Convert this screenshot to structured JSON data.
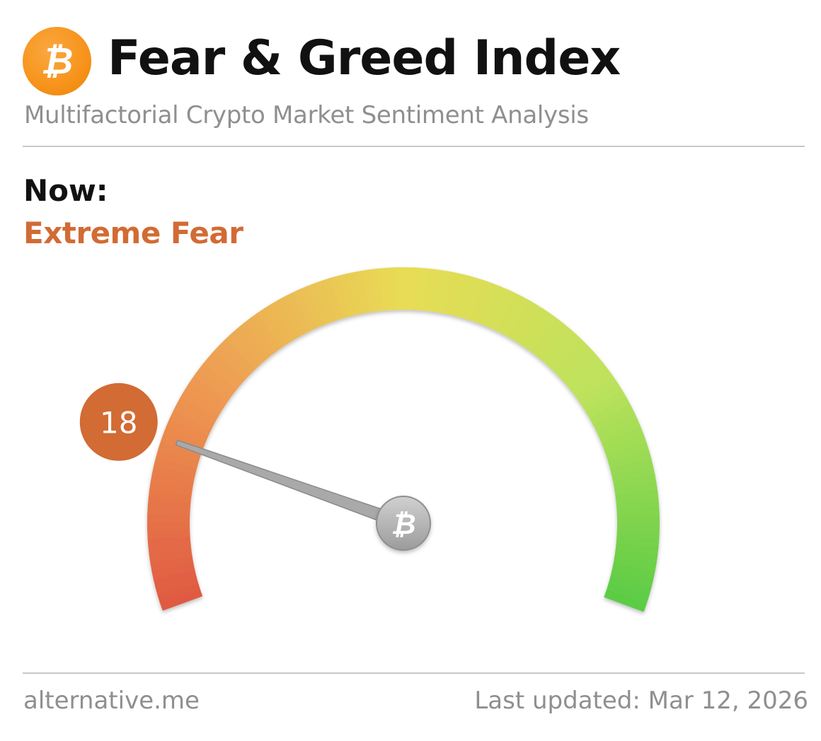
{
  "header": {
    "logo_icon": "bitcoin-icon",
    "logo_glyph": "₿",
    "title": "Fear & Greed Index",
    "subtitle": "Multifactorial Crypto Market Sentiment Analysis"
  },
  "current": {
    "label": "Now:",
    "classification": "Extreme Fear",
    "value": 18,
    "value_text": "18"
  },
  "gauge": {
    "min": 0,
    "max": 100,
    "hub_icon": "bitcoin-icon",
    "hub_glyph": "₿"
  },
  "footer": {
    "source": "alternative.me",
    "updated": "Last updated: Mar 12, 2026"
  },
  "colors": {
    "accent": "#d26b34",
    "bitcoin_orange": "#f7931a",
    "fear_red": "#e05a42",
    "neutral_yellow": "#e8dc55",
    "greed_green": "#5ccc45"
  }
}
